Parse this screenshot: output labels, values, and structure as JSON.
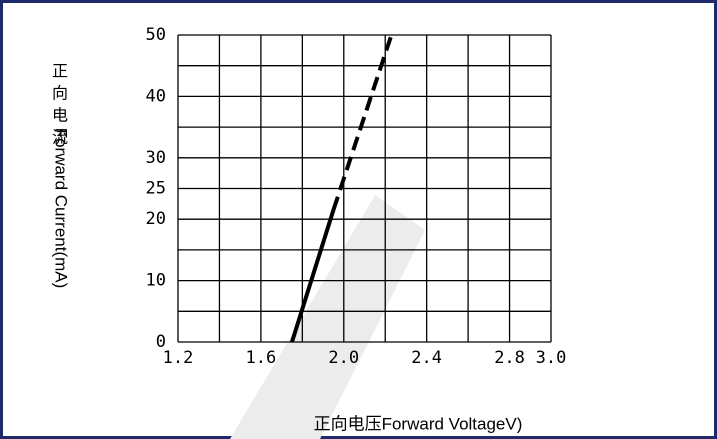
{
  "chart_data": {
    "type": "line",
    "x_label": "正向电压Forward VoltageV)",
    "y_label_cn": "正向电流",
    "y_label": "Forward Current(mA)",
    "series": [
      {
        "color": "#000000",
        "style": "solid",
        "x": [
          1.75,
          1.95
        ],
        "values": [
          0,
          21.5
        ]
      },
      {
        "color": "#000000",
        "style": "dashed",
        "x": [
          1.95,
          2.23
        ],
        "values": [
          21.5,
          50
        ]
      }
    ],
    "xlim": [
      1.2,
      3.0
    ],
    "xticks": [
      1.2,
      1.6,
      {
        "value": 2,
        "label": "2.0"
      },
      2.4,
      2.8,
      {
        "value": 3,
        "label": "3.0"
      }
    ],
    "ylim": [
      0,
      50
    ],
    "yticks": [
      0,
      10,
      20,
      25,
      30,
      40,
      50
    ],
    "grid": true,
    "grid_step": {
      "x": 0.2,
      "y": 5
    }
  }
}
